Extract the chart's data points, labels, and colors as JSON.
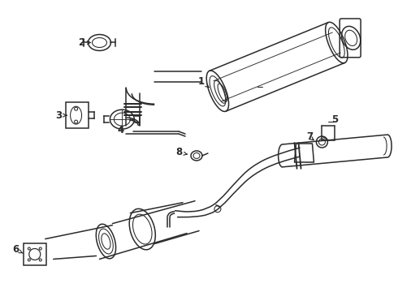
{
  "background_color": "#ffffff",
  "line_color": "#2a2a2a",
  "line_width": 1.1,
  "figsize": [
    4.9,
    3.6
  ],
  "dpi": 100
}
